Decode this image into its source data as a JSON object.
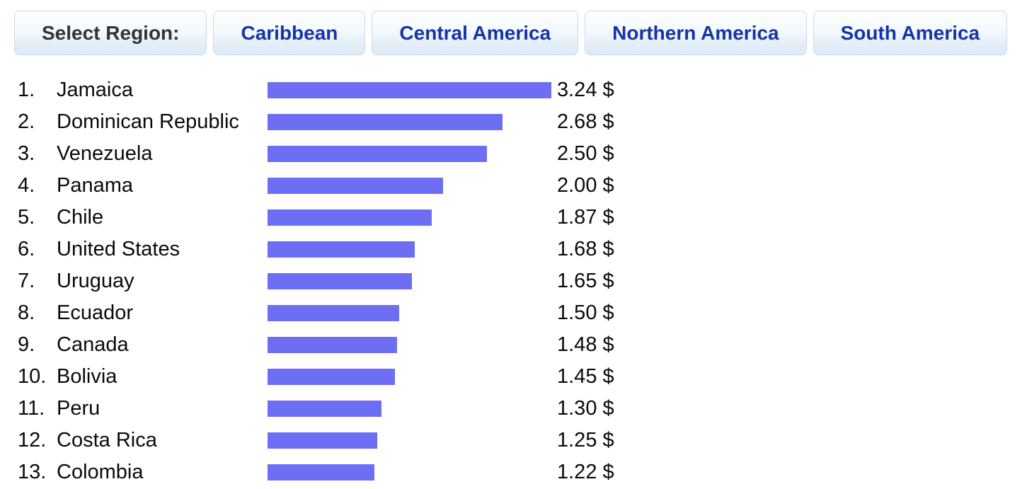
{
  "toolbar": {
    "label": "Select Region:",
    "buttons": [
      {
        "label": "Caribbean"
      },
      {
        "label": "Central America"
      },
      {
        "label": "Northern America"
      },
      {
        "label": "South America"
      }
    ]
  },
  "chart_data": {
    "type": "bar",
    "orientation": "horizontal",
    "title": "",
    "unit": "$",
    "xlim": [
      0,
      3.24
    ],
    "bar_color": "#6e6ef5",
    "categories": [
      "Jamaica",
      "Dominican Republic",
      "Venezuela",
      "Panama",
      "Chile",
      "United States",
      "Uruguay",
      "Ecuador",
      "Canada",
      "Bolivia",
      "Peru",
      "Costa Rica",
      "Colombia"
    ],
    "values": [
      3.24,
      2.68,
      2.5,
      2.0,
      1.87,
      1.68,
      1.65,
      1.5,
      1.48,
      1.45,
      1.3,
      1.25,
      1.22
    ],
    "ranks": [
      "1.",
      "2.",
      "3.",
      "4.",
      "5.",
      "6.",
      "7.",
      "8.",
      "9.",
      "10.",
      "11.",
      "12.",
      "13."
    ],
    "value_labels": [
      "3.24 $",
      "2.68 $",
      "2.50 $",
      "2.00 $",
      "1.87 $",
      "1.68 $",
      "1.65 $",
      "1.50 $",
      "1.48 $",
      "1.45 $",
      "1.30 $",
      "1.25 $",
      "1.22 $"
    ]
  },
  "colors": {
    "bar": "#6e6ef5",
    "region_button_text": "#1634a4",
    "label_text": "#333333"
  }
}
